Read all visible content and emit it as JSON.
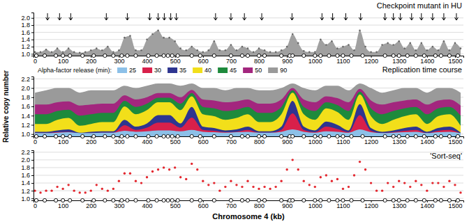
{
  "chart_data": [
    {
      "type": "area",
      "title": "Checkpoint mutant in HU",
      "marker": "dot",
      "color": "#a0a0a0",
      "x": [
        0,
        20,
        40,
        60,
        80,
        100,
        120,
        140,
        160,
        180,
        200,
        220,
        240,
        260,
        280,
        300,
        320,
        340,
        360,
        380,
        400,
        420,
        440,
        460,
        480,
        500,
        520,
        540,
        560,
        580,
        600,
        620,
        640,
        660,
        680,
        700,
        720,
        740,
        760,
        780,
        800,
        820,
        840,
        860,
        880,
        900,
        920,
        940,
        960,
        980,
        1000,
        1020,
        1040,
        1060,
        1080,
        1100,
        1120,
        1140,
        1160,
        1180,
        1200,
        1220,
        1240,
        1260,
        1280,
        1300,
        1320,
        1340,
        1360,
        1380,
        1400,
        1420,
        1440,
        1460,
        1480,
        1500,
        1520
      ],
      "values": [
        1.05,
        1.05,
        1.12,
        1.05,
        1.15,
        1.05,
        1.15,
        1.05,
        1.03,
        1.05,
        1.1,
        1.15,
        1.1,
        1.2,
        1.05,
        1.1,
        1.45,
        1.5,
        1.1,
        1.1,
        1.4,
        1.55,
        1.65,
        1.45,
        1.45,
        1.35,
        1.15,
        1.1,
        1.2,
        1.1,
        1.05,
        1.1,
        1.35,
        1.1,
        1.1,
        1.25,
        1.1,
        1.2,
        1.15,
        1.05,
        1.15,
        1.1,
        1.05,
        1.05,
        1.1,
        1.2,
        1.55,
        1.3,
        1.08,
        1.05,
        1.05,
        1.4,
        1.25,
        1.35,
        1.15,
        1.2,
        1.25,
        1.1,
        1.65,
        1.2,
        1.05,
        1.05,
        1.25,
        1.3,
        1.25,
        1.35,
        1.15,
        1.3,
        1.1,
        1.3,
        1.1,
        1.2,
        1.1,
        1.35,
        1.1,
        1.3,
        1.15
      ],
      "xlim": [
        -5,
        1530
      ],
      "xticks": [
        0,
        100,
        200,
        300,
        400,
        500,
        600,
        700,
        800,
        900,
        1000,
        1100,
        1200,
        1300,
        1400,
        1500
      ],
      "ylim": [
        0.95,
        2.15
      ],
      "yticks": [
        {
          "value": 1,
          "label": "1.0"
        },
        1.2,
        1.4,
        1.6,
        1.8,
        {
          "value": 2,
          "label": "2.0"
        }
      ],
      "grid": true,
      "arrows": [
        45,
        88,
        128,
        255,
        330,
        410,
        440,
        462,
        485,
        505,
        645,
        700,
        748,
        810,
        918,
        1025,
        1063,
        1110,
        1163,
        1250,
        1280,
        1305,
        1345,
        1380,
        1420,
        1460,
        1505
      ],
      "origins": [
        5,
        35,
        75,
        100,
        125,
        170,
        210,
        250,
        280,
        310,
        330,
        360,
        405,
        435,
        460,
        475,
        490,
        510,
        560,
        590,
        640,
        700,
        740,
        760,
        800,
        820,
        880,
        910,
        920,
        960,
        1000,
        1020,
        1050,
        1080,
        1100,
        1130,
        1170,
        1250,
        1280,
        1300,
        1330,
        1360,
        1390,
        1430,
        1450,
        1480,
        1510
      ]
    },
    {
      "type": "area",
      "title": "Replication time course",
      "ylabel": "Relative copy number",
      "legend_title": "Alpha-factor release (min):",
      "legend": "top left",
      "x": [
        0,
        40,
        80,
        120,
        160,
        200,
        240,
        280,
        320,
        360,
        400,
        440,
        480,
        520,
        560,
        600,
        640,
        680,
        720,
        760,
        800,
        840,
        880,
        920,
        960,
        1000,
        1040,
        1080,
        1120,
        1160,
        1200,
        1240,
        1280,
        1320,
        1360,
        1400,
        1440,
        1480,
        1520
      ],
      "series": [
        {
          "name": "25",
          "color": "#8cc0e8",
          "values": [
            1.02,
            1.02,
            1.03,
            1.04,
            1.02,
            1.02,
            1.03,
            1.03,
            1.07,
            1.05,
            1.06,
            1.08,
            1.08,
            1.06,
            1.09,
            1.05,
            1.04,
            1.03,
            1.04,
            1.05,
            1.03,
            1.03,
            1.05,
            1.1,
            1.05,
            1.03,
            1.06,
            1.05,
            1.03,
            1.1,
            1.04,
            1.02,
            1.03,
            1.04,
            1.05,
            1.02,
            1.04,
            1.05,
            1.02
          ]
        },
        {
          "name": "30",
          "color": "#d8204a",
          "values": [
            1.02,
            1.02,
            1.04,
            1.05,
            1.01,
            1.02,
            1.03,
            1.03,
            1.19,
            1.09,
            1.14,
            1.25,
            1.25,
            1.14,
            1.36,
            1.09,
            1.07,
            1.04,
            1.05,
            1.09,
            1.03,
            1.03,
            1.09,
            1.45,
            1.09,
            1.04,
            1.16,
            1.11,
            1.04,
            1.41,
            1.07,
            1.02,
            1.04,
            1.07,
            1.09,
            1.02,
            1.07,
            1.09,
            1.01
          ]
        },
        {
          "name": "35",
          "color": "#2e3590",
          "values": [
            1.05,
            1.05,
            1.08,
            1.1,
            1.03,
            1.05,
            1.06,
            1.06,
            1.31,
            1.16,
            1.23,
            1.41,
            1.41,
            1.23,
            1.59,
            1.16,
            1.13,
            1.08,
            1.1,
            1.16,
            1.06,
            1.06,
            1.16,
            1.72,
            1.16,
            1.08,
            1.27,
            1.2,
            1.08,
            1.65,
            1.13,
            1.05,
            1.08,
            1.13,
            1.16,
            1.05,
            1.13,
            1.16,
            1.03
          ]
        },
        {
          "name": "40",
          "color": "#f2df1a",
          "values": [
            1.22,
            1.22,
            1.31,
            1.35,
            1.18,
            1.22,
            1.26,
            1.26,
            1.6,
            1.43,
            1.52,
            1.69,
            1.69,
            1.52,
            1.82,
            1.43,
            1.39,
            1.31,
            1.35,
            1.43,
            1.26,
            1.26,
            1.43,
            1.9,
            1.43,
            1.31,
            1.56,
            1.48,
            1.31,
            1.86,
            1.39,
            1.22,
            1.31,
            1.39,
            1.43,
            1.22,
            1.39,
            1.43,
            1.18
          ]
        },
        {
          "name": "45",
          "color": "#1e8a3c",
          "values": [
            1.43,
            1.43,
            1.5,
            1.53,
            1.4,
            1.43,
            1.46,
            1.46,
            1.72,
            1.59,
            1.66,
            1.79,
            1.79,
            1.66,
            1.89,
            1.59,
            1.56,
            1.5,
            1.53,
            1.59,
            1.46,
            1.46,
            1.59,
            1.95,
            1.59,
            1.5,
            1.69,
            1.63,
            1.5,
            1.92,
            1.56,
            1.43,
            1.5,
            1.56,
            1.59,
            1.43,
            1.56,
            1.59,
            1.4
          ]
        },
        {
          "name": "50",
          "color": "#a3267e",
          "values": [
            1.64,
            1.64,
            1.69,
            1.71,
            1.62,
            1.64,
            1.66,
            1.66,
            1.84,
            1.75,
            1.8,
            1.89,
            1.89,
            1.8,
            1.96,
            1.75,
            1.73,
            1.69,
            1.71,
            1.75,
            1.66,
            1.66,
            1.75,
            2.0,
            1.75,
            1.69,
            1.82,
            1.78,
            1.69,
            1.98,
            1.73,
            1.64,
            1.69,
            1.73,
            1.75,
            1.64,
            1.73,
            1.75,
            1.62
          ]
        },
        {
          "name": "90",
          "color": "#9a9a9a",
          "values": [
            1.9,
            1.95,
            2.0,
            2.0,
            1.9,
            1.95,
            1.95,
            1.95,
            2.05,
            2.0,
            2.05,
            2.1,
            2.1,
            2.05,
            2.1,
            2.0,
            2.0,
            1.95,
            2.0,
            2.0,
            1.95,
            1.95,
            2.0,
            2.1,
            2.0,
            1.95,
            2.05,
            2.05,
            1.95,
            2.1,
            2.0,
            1.9,
            1.95,
            2.0,
            2.0,
            1.9,
            2.0,
            2.0,
            1.9
          ]
        }
      ],
      "xlim": [
        -5,
        1530
      ],
      "xticks": [
        0,
        100,
        200,
        300,
        400,
        500,
        600,
        700,
        800,
        900,
        1000,
        1100,
        1200,
        1300,
        1400,
        1500
      ],
      "ylim": [
        0.95,
        2.25
      ],
      "yticks": [
        {
          "value": 1,
          "label": "1.0"
        },
        1.2,
        1.4,
        1.6,
        1.8,
        {
          "value": 2,
          "label": "2.0"
        },
        2.2
      ],
      "grid": true,
      "origins": [
        5,
        35,
        75,
        100,
        125,
        170,
        210,
        250,
        280,
        310,
        330,
        360,
        405,
        435,
        460,
        475,
        490,
        510,
        560,
        590,
        640,
        700,
        740,
        760,
        800,
        820,
        880,
        910,
        920,
        960,
        1000,
        1020,
        1050,
        1080,
        1100,
        1130,
        1170,
        1250,
        1280,
        1300,
        1330,
        1360,
        1390,
        1430,
        1450,
        1480,
        1510
      ]
    },
    {
      "type": "scatter",
      "title": "'Sort-seq'",
      "xlabel": "Chromosome 4 (kb)",
      "marker": "dot",
      "color": "#e3262e",
      "x": [
        0,
        20,
        40,
        60,
        80,
        100,
        120,
        140,
        160,
        180,
        200,
        220,
        240,
        260,
        280,
        300,
        320,
        340,
        360,
        380,
        400,
        420,
        440,
        460,
        480,
        500,
        520,
        540,
        560,
        580,
        600,
        620,
        640,
        660,
        680,
        700,
        720,
        740,
        760,
        780,
        800,
        820,
        840,
        860,
        880,
        900,
        920,
        940,
        960,
        980,
        1000,
        1020,
        1040,
        1060,
        1080,
        1100,
        1120,
        1140,
        1160,
        1180,
        1200,
        1220,
        1240,
        1260,
        1280,
        1300,
        1320,
        1340,
        1360,
        1380,
        1400,
        1420,
        1440,
        1460,
        1480,
        1500,
        1520
      ],
      "values": [
        1.2,
        1.15,
        1.2,
        1.2,
        1.3,
        1.25,
        1.35,
        1.2,
        1.15,
        1.15,
        1.2,
        1.35,
        1.25,
        1.2,
        1.25,
        1.45,
        1.65,
        1.65,
        1.45,
        1.4,
        1.55,
        1.7,
        1.75,
        1.8,
        1.75,
        1.8,
        1.55,
        1.5,
        1.9,
        1.75,
        1.45,
        1.35,
        1.4,
        1.2,
        1.3,
        1.45,
        1.35,
        1.3,
        1.45,
        1.3,
        1.25,
        1.3,
        1.25,
        1.3,
        1.45,
        1.75,
        2.0,
        1.75,
        1.45,
        1.35,
        1.3,
        1.55,
        1.6,
        1.45,
        1.5,
        1.25,
        1.3,
        1.6,
        1.95,
        1.75,
        1.4,
        1.2,
        1.2,
        1.4,
        1.3,
        1.45,
        1.4,
        1.3,
        1.45,
        1.35,
        1.2,
        1.4,
        1.4,
        1.3,
        1.45,
        1.35,
        1.15
      ],
      "xlim": [
        -5,
        1530
      ],
      "xticks": [
        0,
        100,
        200,
        300,
        400,
        500,
        600,
        700,
        800,
        900,
        1000,
        1100,
        1200,
        1300,
        1400,
        1500
      ],
      "ylim": [
        0.95,
        2.25
      ],
      "yticks": [
        {
          "value": 1,
          "label": "1.0"
        },
        1.2,
        1.4,
        1.6,
        1.8,
        {
          "value": 2,
          "label": "2.0"
        },
        2.2
      ],
      "grid": true,
      "origins": [
        5,
        35,
        75,
        100,
        125,
        170,
        210,
        250,
        280,
        310,
        330,
        360,
        405,
        435,
        460,
        475,
        490,
        510,
        560,
        590,
        640,
        700,
        740,
        760,
        800,
        820,
        880,
        910,
        920,
        960,
        1000,
        1020,
        1050,
        1080,
        1100,
        1130,
        1170,
        1250,
        1280,
        1300,
        1330,
        1360,
        1390,
        1430,
        1450,
        1480,
        1510
      ]
    }
  ]
}
